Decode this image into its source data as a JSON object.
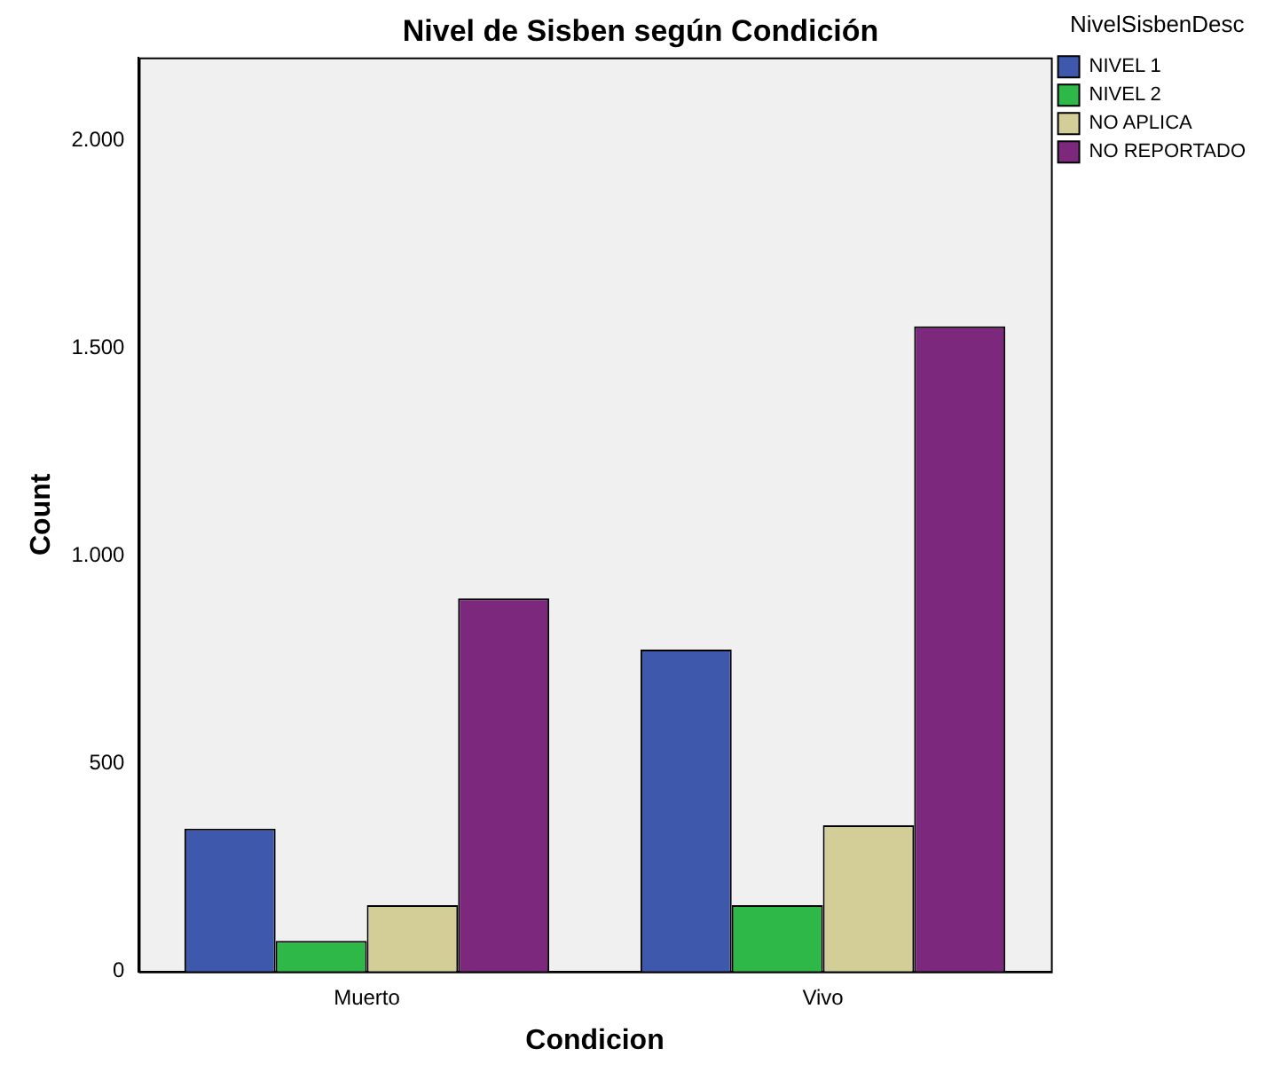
{
  "chart_data": {
    "type": "bar",
    "title": "Nivel de Sisben según Condición",
    "xlabel": "Condicion",
    "ylabel": "Count",
    "legend_title": "NivelSisbenDesc",
    "categories": [
      "Muerto",
      "Vivo"
    ],
    "series": [
      {
        "name": "NIVEL 1",
        "color": "#3e58ac",
        "values": [
          344,
          775
        ]
      },
      {
        "name": "NIVEL 2",
        "color": "#2eb848",
        "values": [
          74,
          160
        ]
      },
      {
        "name": "NO APLICA",
        "color": "#d3ce97",
        "values": [
          160,
          352
        ]
      },
      {
        "name": "NO REPORTADO",
        "color": "#7c287d",
        "values": [
          898,
          1553
        ]
      }
    ],
    "ylim": [
      0,
      2200
    ],
    "yticks": [
      {
        "value": 0,
        "label": "0"
      },
      {
        "value": 500,
        "label": "500"
      },
      {
        "value": 1000,
        "label": "1.000"
      },
      {
        "value": 1500,
        "label": "1.500"
      },
      {
        "value": 2000,
        "label": "2.000"
      }
    ],
    "grid": false,
    "legend": "top right"
  }
}
